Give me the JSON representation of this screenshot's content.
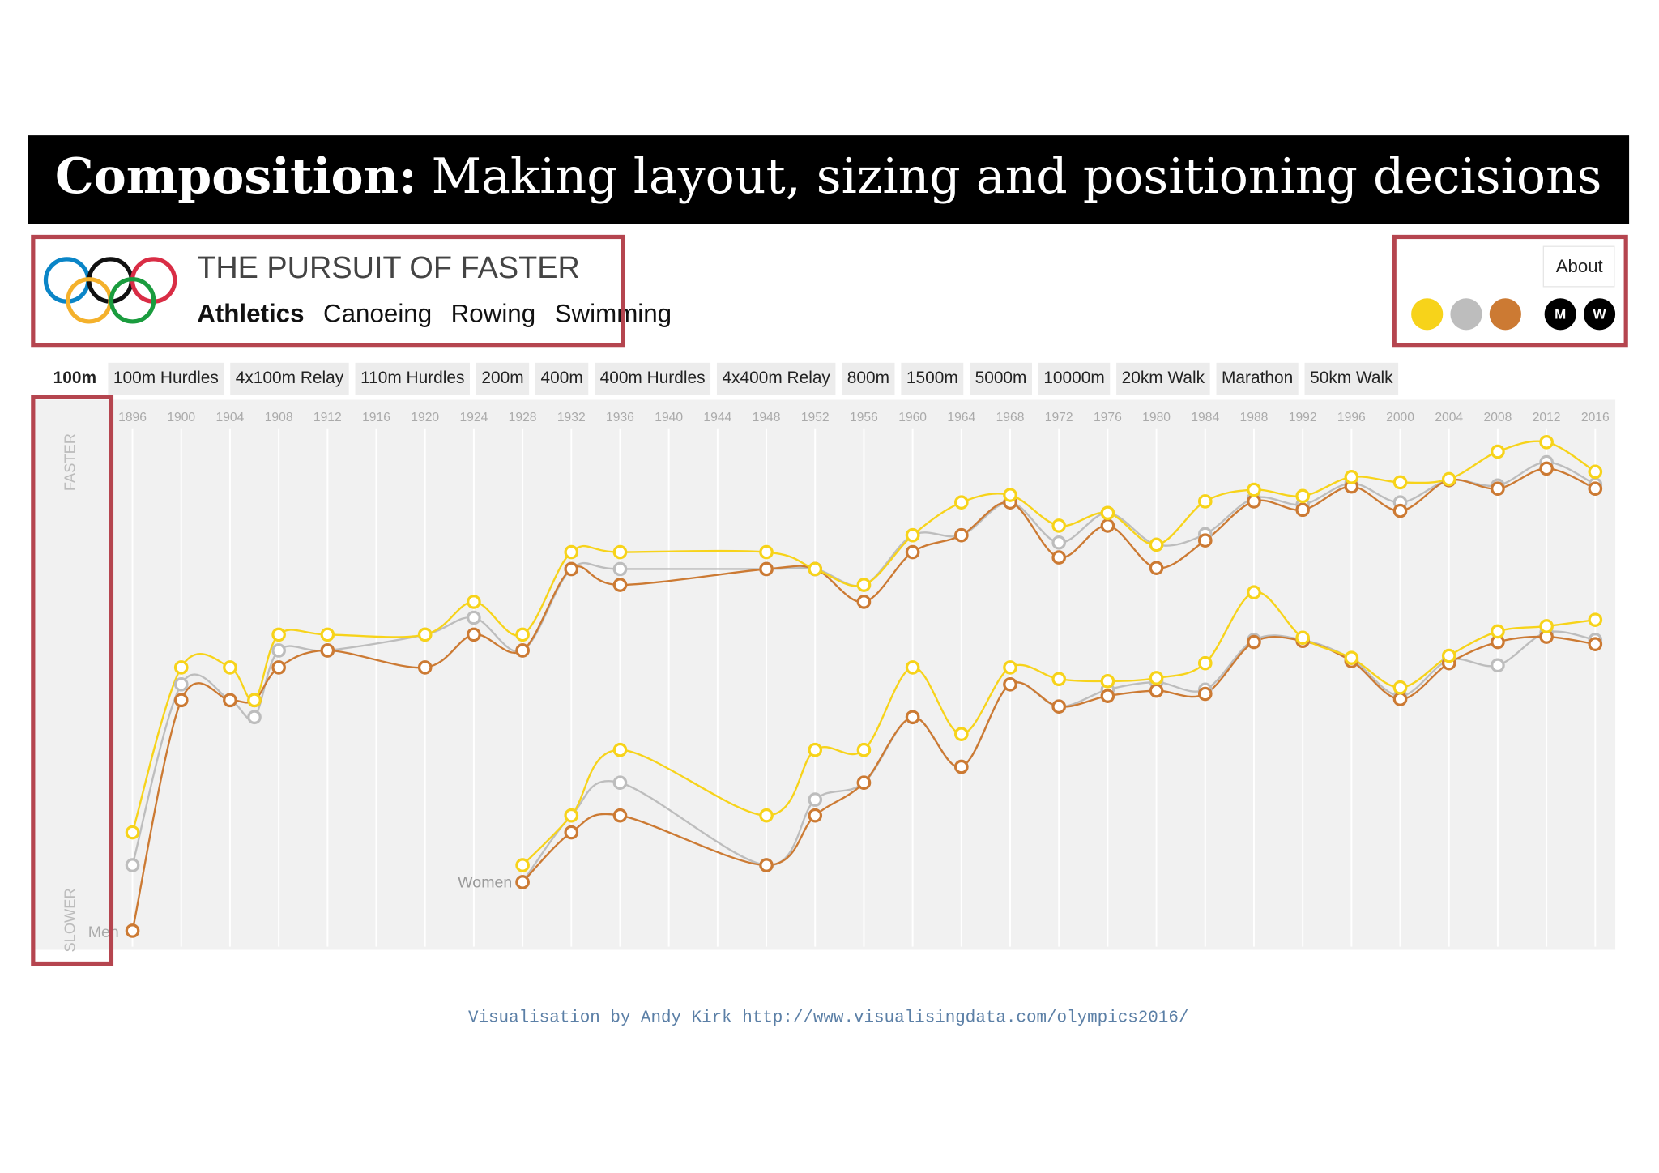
{
  "slide_title": {
    "lead": "Composition:",
    "text": "Making layout, sizing and positioning decisions"
  },
  "header": {
    "title": "THE PURSUIT OF FASTER",
    "sports": [
      "Athletics",
      "Canoeing",
      "Rowing",
      "Swimming"
    ],
    "about": "About",
    "gender_buttons": [
      "M",
      "W"
    ]
  },
  "events": [
    "100m",
    "100m Hurdles",
    "4x100m Relay",
    "110m Hurdles",
    "200m",
    "400m",
    "400m Hurdles",
    "4x400m Relay",
    "800m",
    "1500m",
    "5000m",
    "10000m",
    "20km Walk",
    "Marathon",
    "50km Walk"
  ],
  "chart_data": {
    "type": "line",
    "y_labels": {
      "top": "FASTER",
      "bottom": "SLOWER"
    },
    "annotations": [
      "Men",
      "Women"
    ],
    "x": [
      1896,
      1900,
      1904,
      1906,
      1908,
      1912,
      1920,
      1924,
      1928,
      1932,
      1936,
      1948,
      1952,
      1956,
      1960,
      1964,
      1968,
      1972,
      1976,
      1980,
      1984,
      1988,
      1992,
      1996,
      2000,
      2004,
      2008,
      2012,
      2016
    ],
    "xlim": [
      1896,
      2016
    ],
    "xticks": [
      1896,
      1900,
      1904,
      1908,
      1912,
      1916,
      1920,
      1924,
      1928,
      1932,
      1936,
      1940,
      1944,
      1948,
      1952,
      1956,
      1960,
      1964,
      1968,
      1972,
      1976,
      1980,
      1984,
      1988,
      1992,
      1996,
      2000,
      2004,
      2008,
      2012,
      2016
    ],
    "ylim": [
      0,
      100
    ],
    "grid": true,
    "series": [
      {
        "color": "#bdbdbd",
        "values": [
          16.4,
          50.6,
          47.6,
          44.4,
          57,
          57,
          60,
          63.2,
          57,
          72.4,
          72.4,
          72.4,
          72.4,
          69.4,
          78.8,
          78.8,
          85,
          77.4,
          83,
          77,
          79,
          85.8,
          84.6,
          88.6,
          85,
          89.2,
          88.2,
          92.6,
          88.4
        ]
      },
      {
        "color": "#cc7a33",
        "values": [
          4,
          47.6,
          47.6,
          47.6,
          53.8,
          57,
          53.8,
          60,
          57,
          72.4,
          69.4,
          72.4,
          72.4,
          66.2,
          75.6,
          78.8,
          85,
          74.6,
          80.6,
          72.6,
          77.8,
          85.2,
          83.6,
          88,
          83.4,
          89.2,
          87.6,
          91.4,
          87.6
        ]
      },
      {
        "color": "#f7d31a",
        "values": [
          22.6,
          53.8,
          53.8,
          47.6,
          60,
          60,
          60,
          66.2,
          60,
          75.6,
          75.6,
          75.6,
          72.4,
          69.4,
          78.8,
          85,
          86.4,
          80.6,
          83,
          77,
          85.2,
          87.4,
          86.2,
          89.8,
          88.8,
          89.4,
          94.6,
          96.4,
          90.8
        ]
      },
      {
        "color": "#bdbdbd",
        "values": [
          null,
          null,
          null,
          null,
          null,
          null,
          null,
          null,
          13.2,
          25.8,
          32,
          16.4,
          28.8,
          32,
          44.4,
          35,
          50.6,
          46.4,
          49.6,
          51,
          49.6,
          59,
          59,
          55.4,
          48.4,
          55.2,
          54.2,
          60.4,
          59
        ]
      },
      {
        "color": "#cc7a33",
        "values": [
          null,
          null,
          null,
          null,
          null,
          null,
          null,
          null,
          13.2,
          22.6,
          25.8,
          16.4,
          25.8,
          32,
          44.4,
          35,
          50.6,
          46.4,
          48.4,
          49.4,
          48.8,
          58.6,
          58.8,
          55,
          47.8,
          54.6,
          58.6,
          59.6,
          58.2
        ]
      },
      {
        "color": "#f7d31a",
        "values": [
          null,
          null,
          null,
          null,
          null,
          null,
          null,
          null,
          16.4,
          25.8,
          38.2,
          25.8,
          38.2,
          38.2,
          53.8,
          41.2,
          53.8,
          51.6,
          51.2,
          51.8,
          54.6,
          68,
          59.4,
          55.6,
          50,
          56,
          60.6,
          61.6,
          62.8
        ]
      }
    ]
  },
  "credit": "Visualisation by Andy Kirk http://www.visualisingdata.com/olympics2016/"
}
